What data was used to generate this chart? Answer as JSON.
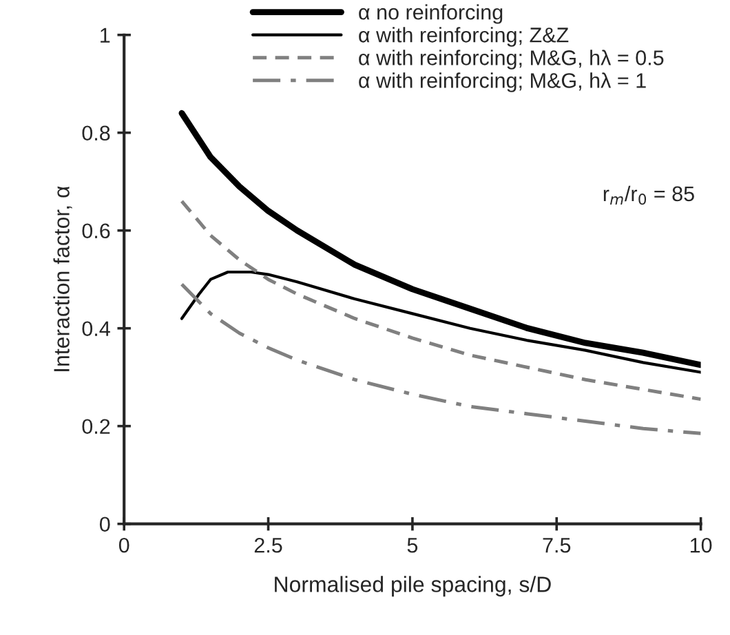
{
  "chart_data": {
    "type": "line",
    "xlabel": "Normalised pile spacing, s/D",
    "ylabel": "Interaction factor, α",
    "xlim": [
      0,
      10
    ],
    "ylim": [
      0,
      1
    ],
    "xticks": [
      0,
      2.5,
      5,
      7.5,
      10
    ],
    "yticks": [
      0,
      0.2,
      0.4,
      0.6,
      0.8,
      1
    ],
    "grid": false,
    "legend": "top",
    "marker": "none",
    "annotations": [
      "r$_{m}$/r$_{0}$ = 85"
    ],
    "series": [
      {
        "name": "α no reinforcing",
        "color": "#000000",
        "line_style": "solid",
        "x": [
          1,
          1.5,
          2,
          2.5,
          3,
          4,
          5,
          6,
          7,
          8,
          9,
          10
        ],
        "values": [
          0.84,
          0.75,
          0.69,
          0.64,
          0.6,
          0.53,
          0.48,
          0.44,
          0.4,
          0.37,
          0.35,
          0.325
        ]
      },
      {
        "name": "α with reinforcing; Z&Z",
        "color": "#000000",
        "line_style": "solid",
        "x": [
          1,
          1.3,
          1.5,
          1.8,
          2.2,
          2.5,
          3,
          4,
          5,
          6,
          7,
          8,
          9,
          10
        ],
        "values": [
          0.42,
          0.47,
          0.5,
          0.515,
          0.515,
          0.51,
          0.495,
          0.46,
          0.43,
          0.4,
          0.375,
          0.355,
          0.33,
          0.31
        ]
      },
      {
        "name": "α with reinforcing; M&G, hλ = 0.5",
        "color": "#808080",
        "line_style": "dashed",
        "x": [
          1,
          1.5,
          2,
          2.5,
          3,
          4,
          5,
          6,
          7,
          8,
          9,
          10
        ],
        "values": [
          0.66,
          0.59,
          0.54,
          0.5,
          0.47,
          0.42,
          0.38,
          0.345,
          0.32,
          0.295,
          0.275,
          0.255
        ]
      },
      {
        "name": "α with reinforcing; M&G, hλ = 1",
        "color": "#808080",
        "line_style": "dashdot",
        "x": [
          1,
          1.5,
          2,
          2.5,
          3,
          4,
          5,
          6,
          7,
          8,
          9,
          10
        ],
        "values": [
          0.49,
          0.43,
          0.39,
          0.36,
          0.335,
          0.295,
          0.265,
          0.24,
          0.225,
          0.21,
          0.195,
          0.185
        ]
      }
    ]
  }
}
